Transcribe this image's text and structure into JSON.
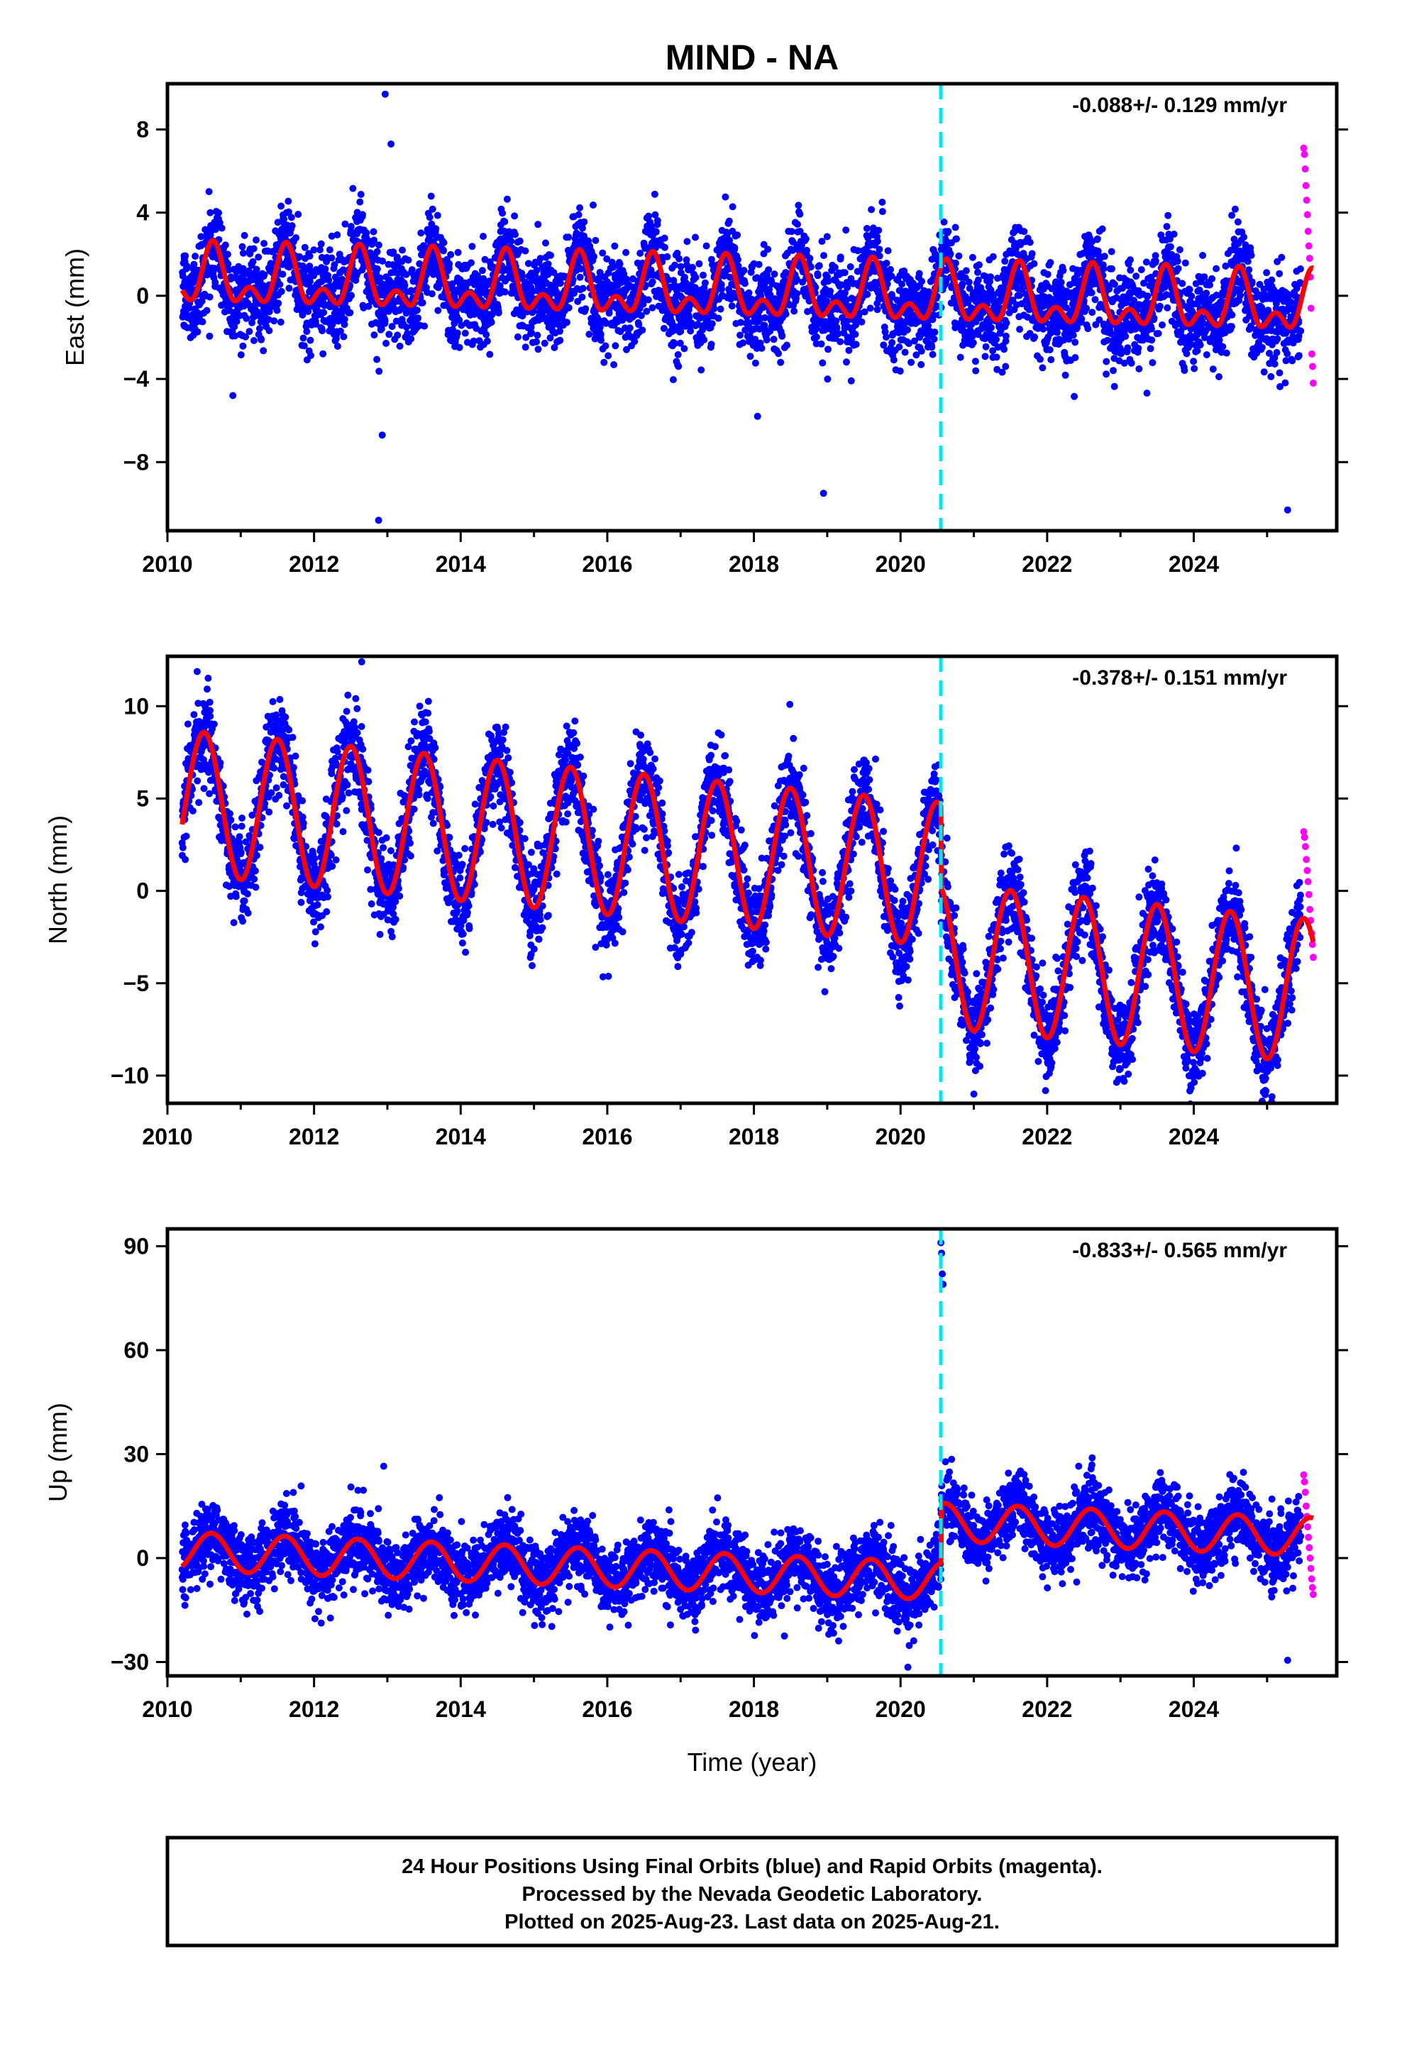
{
  "title": "MIND - NA",
  "colors": {
    "final_points": "#0000ff",
    "rapid_points": "#ff00ff",
    "model_line": "#ff0000",
    "event_line": "#00e5ee"
  },
  "caption": {
    "line1": "24 Hour Positions Using Final Orbits (blue) and Rapid Orbits (magenta).",
    "line2": "Processed by the Nevada Geodetic Laboratory.",
    "line3": "Plotted on 2025-Aug-23. Last data on 2025-Aug-21."
  },
  "chart_data": [
    {
      "type": "scatter",
      "ylabel": "East (mm)",
      "rate_label": "-0.088+/- 0.129 mm/yr",
      "xlim": [
        2010.0,
        2025.95
      ],
      "ylim": [
        -11.3,
        10.2
      ],
      "yticks": [
        8,
        4,
        0,
        -4,
        -8
      ],
      "ytick_labels": [
        "8",
        "4",
        "0",
        "−4",
        "−8"
      ],
      "xticks": [
        2010,
        2012,
        2014,
        2016,
        2018,
        2020,
        2022,
        2024
      ],
      "xtick_labels": [
        "2010",
        "2012",
        "2014",
        "2016",
        "2018",
        "2020",
        "2022",
        "2024"
      ],
      "event_line_x": 2020.55,
      "data_start": 2010.2,
      "data_end": 2025.46,
      "rapid_start": 2025.5,
      "rapid_end": 2025.63,
      "model": {
        "base": 0.8,
        "trend": -0.088,
        "annual": 1.1,
        "semiannual": 0.8,
        "phase_peak": 0.62
      },
      "noise": 1.1,
      "outliers": [
        [
          2012.97,
          9.7
        ],
        [
          2012.88,
          -10.8
        ],
        [
          2012.93,
          -6.7
        ],
        [
          2013.05,
          7.3
        ],
        [
          2018.95,
          -9.5
        ],
        [
          2025.28,
          -10.3
        ],
        [
          2019.75,
          4.5
        ],
        [
          2018.05,
          -5.8
        ]
      ],
      "rapid_values": [
        7.1,
        6.8,
        6.1,
        5.3,
        4.6,
        3.9,
        3.1,
        2.4,
        1.8,
        0.9,
        -0.6,
        -2.8,
        -3.4,
        -4.2
      ]
    },
    {
      "type": "scatter",
      "ylabel": "North (mm)",
      "rate_label": "-0.378+/- 0.151 mm/yr",
      "xlim": [
        2010.0,
        2025.95
      ],
      "ylim": [
        -11.5,
        12.7
      ],
      "yticks": [
        10,
        5,
        0,
        -5,
        -10
      ],
      "ytick_labels": [
        "10",
        "5",
        "0",
        "−5",
        "−10"
      ],
      "xticks": [
        2010,
        2012,
        2014,
        2016,
        2018,
        2020,
        2022,
        2024
      ],
      "xtick_labels": [
        "2010",
        "2012",
        "2014",
        "2016",
        "2018",
        "2020",
        "2022",
        "2024"
      ],
      "event_line_x": 2020.55,
      "data_start": 2010.2,
      "data_end": 2025.46,
      "rapid_start": 2025.5,
      "rapid_end": 2025.63,
      "model": {
        "base": 4.8,
        "trend": -0.378,
        "annual": 3.9,
        "semiannual": 0.0,
        "phase_peak": 0.5,
        "offset_at": 2020.55,
        "offset": -4.4
      },
      "noise": 1.2,
      "outliers": [
        [
          2012.65,
          12.4
        ],
        [
          2011.1,
          -1.2
        ],
        [
          2021.0,
          -11.0
        ],
        [
          2025.05,
          -9.6
        ]
      ],
      "rapid_values": [
        3.2,
        2.9,
        2.4,
        1.7,
        1.1,
        0.5,
        -0.2,
        -1.0,
        -1.6,
        -2.3,
        -2.9,
        -3.6
      ]
    },
    {
      "type": "scatter",
      "ylabel": "Up (mm)",
      "rate_label": "-0.833+/- 0.565 mm/yr",
      "xaxis_label": "Time (year)",
      "xlim": [
        2010.0,
        2025.95
      ],
      "ylim": [
        -34,
        95
      ],
      "yticks": [
        90,
        60,
        30,
        0,
        -30
      ],
      "ytick_labels": [
        "90",
        "60",
        "30",
        "0",
        "−30"
      ],
      "xticks": [
        2010,
        2012,
        2014,
        2016,
        2018,
        2020,
        2022,
        2024
      ],
      "xtick_labels": [
        "2010",
        "2012",
        "2014",
        "2016",
        "2018",
        "2020",
        "2022",
        "2024"
      ],
      "event_line_x": 2020.55,
      "data_start": 2010.2,
      "data_end": 2025.46,
      "rapid_start": 2025.5,
      "rapid_end": 2025.63,
      "model": {
        "base": 2.0,
        "trend": -0.833,
        "annual": 5.5,
        "semiannual": 0.0,
        "phase_peak": 0.6,
        "offset_at": 2020.55,
        "offset": 17.0
      },
      "noise": 5.0,
      "outliers": [
        [
          2020.55,
          91
        ],
        [
          2020.56,
          88
        ],
        [
          2020.57,
          82
        ],
        [
          2020.58,
          79
        ],
        [
          2012.95,
          26.5
        ],
        [
          2025.28,
          -29.5
        ],
        [
          2020.1,
          -31.5
        ]
      ],
      "rapid_values": [
        24.0,
        22.0,
        19.0,
        15.0,
        12.0,
        9.0,
        6.0,
        3.0,
        0.0,
        -3.0,
        -6.0,
        -8.5,
        -10.5
      ]
    }
  ]
}
